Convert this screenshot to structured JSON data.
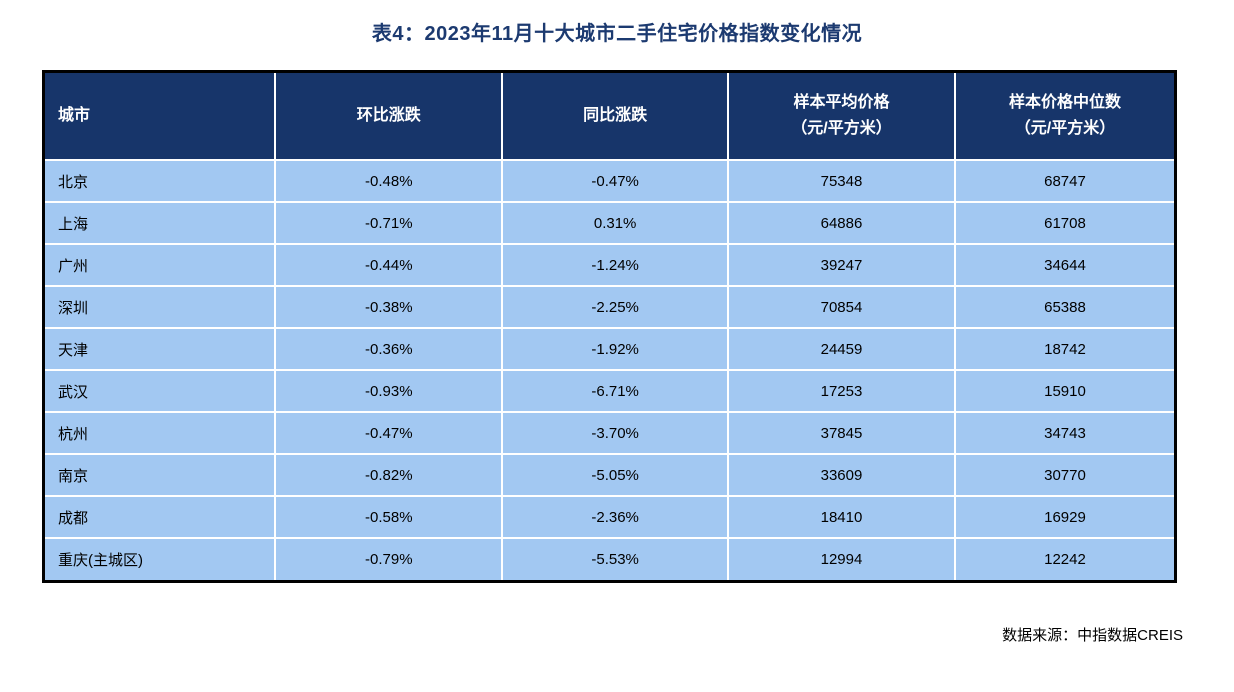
{
  "colors": {
    "header_bg": "#17356a",
    "row_bg": "#a2c8f2",
    "title_text": "#1c3a70",
    "grid_line": "#ffffff",
    "outer_border": "#000000",
    "header_text": "#ffffff",
    "body_text": "#000000"
  },
  "chart_data": {
    "type": "table",
    "title": "表4：2023年11月十大城市二手住宅价格指数变化情况",
    "source_note": "数据来源：中指数据CREIS",
    "columns": [
      "城市",
      "环比涨跌",
      "同比涨跌",
      "样本平均价格\n（元/平方米）",
      "样本价格中位数\n（元/平方米）"
    ],
    "rows": [
      [
        "北京",
        "-0.48%",
        "-0.47%",
        "75348",
        "68747"
      ],
      [
        "上海",
        "-0.71%",
        "0.31%",
        "64886",
        "61708"
      ],
      [
        "广州",
        "-0.44%",
        "-1.24%",
        "39247",
        "34644"
      ],
      [
        "深圳",
        "-0.38%",
        "-2.25%",
        "70854",
        "65388"
      ],
      [
        "天津",
        "-0.36%",
        "-1.92%",
        "24459",
        "18742"
      ],
      [
        "武汉",
        "-0.93%",
        "-6.71%",
        "17253",
        "15910"
      ],
      [
        "杭州",
        "-0.47%",
        "-3.70%",
        "37845",
        "34743"
      ],
      [
        "南京",
        "-0.82%",
        "-5.05%",
        "33609",
        "30770"
      ],
      [
        "成都",
        "-0.58%",
        "-2.36%",
        "18410",
        "16929"
      ],
      [
        "重庆(主城区)",
        "-0.79%",
        "-5.53%",
        "12994",
        "12242"
      ]
    ]
  }
}
